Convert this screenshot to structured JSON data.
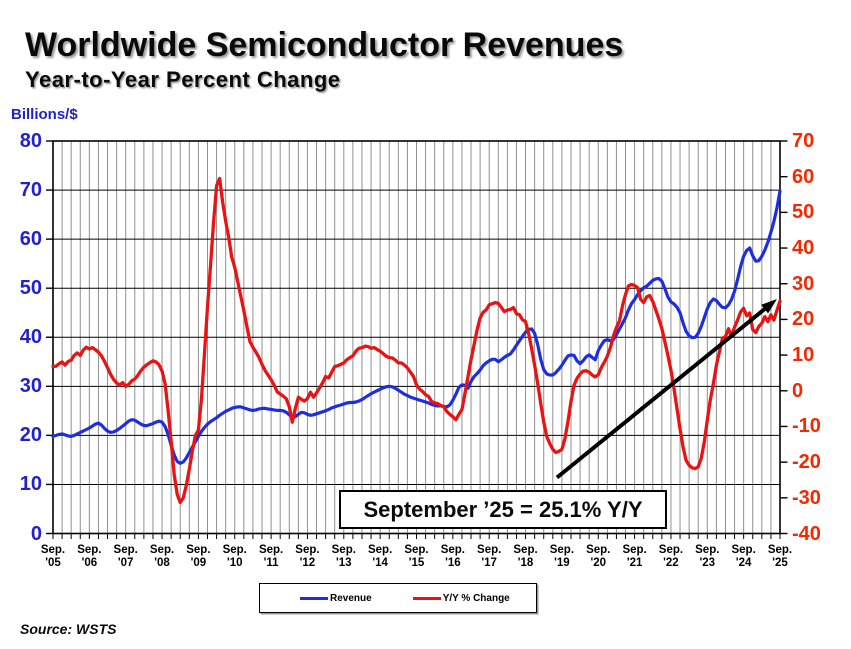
{
  "title": "Worldwide Semiconductor Revenues",
  "subtitle": "Year-to-Year Percent Change",
  "source": "Source: WSTS",
  "annotation": {
    "text": "September ’25 = 25.1% Y/Y"
  },
  "legend": {
    "items": [
      {
        "label": "Revenue",
        "color": "#1e2ede"
      },
      {
        "label": "Y/Y % Change",
        "color": "#e81414"
      }
    ]
  },
  "left_axis": {
    "title": "Billions/$",
    "color": "#2222cc",
    "min": 0,
    "max": 80,
    "tick_labels": [
      "80",
      "70",
      "60",
      "50",
      "40",
      "30",
      "20",
      "10",
      "0"
    ]
  },
  "right_axis": {
    "color": "#f52800",
    "min": -40,
    "max": 70,
    "tick_labels": [
      "70",
      "60",
      "50",
      "40",
      "30",
      "20",
      "10",
      "0",
      "-10",
      "-20",
      "-30",
      "-40"
    ]
  },
  "x_axis": {
    "month_label": "Sep.",
    "years": [
      "'05",
      "'06",
      "'07",
      "'08",
      "'09",
      "'10",
      "'11",
      "'12",
      "'13",
      "'14",
      "'15",
      "'16",
      "'17",
      "'18",
      "'19",
      "'20",
      "'21",
      "'22",
      "'23",
      "'24",
      "'25"
    ]
  },
  "chart_data": {
    "type": "line",
    "x_description": "Monthly, September 2005 through September 2025",
    "x_start": "2005-09",
    "x_end": "2025-09",
    "ylim_left": [
      0,
      80
    ],
    "ylim_right": [
      -40,
      70
    ],
    "grid": {
      "vertical": "quarterly",
      "horizontal": "every 10 (left axis)"
    },
    "legend_position": "bottom center",
    "series": [
      {
        "name": "Revenue",
        "axis": "left",
        "unit": "US$ billions",
        "values": [
          19.8,
          20.0,
          20.2,
          20.3,
          20.1,
          19.9,
          19.8,
          20.0,
          20.3,
          20.6,
          20.9,
          21.2,
          21.5,
          21.9,
          22.3,
          22.5,
          22.1,
          21.4,
          20.9,
          20.6,
          20.7,
          21.0,
          21.4,
          21.9,
          22.4,
          22.9,
          23.2,
          23.1,
          22.7,
          22.3,
          22.0,
          22.0,
          22.2,
          22.4,
          22.7,
          22.9,
          22.7,
          21.8,
          20.2,
          18.0,
          16.0,
          14.7,
          14.3,
          14.6,
          15.4,
          16.5,
          17.6,
          18.7,
          19.8,
          20.8,
          21.6,
          22.3,
          22.8,
          23.2,
          23.6,
          24.1,
          24.5,
          24.9,
          25.2,
          25.5,
          25.7,
          25.8,
          25.8,
          25.6,
          25.4,
          25.2,
          25.1,
          25.2,
          25.4,
          25.5,
          25.5,
          25.4,
          25.3,
          25.2,
          25.1,
          25.1,
          25.0,
          24.7,
          24.2,
          23.7,
          23.8,
          24.3,
          24.7,
          24.6,
          24.3,
          24.1,
          24.2,
          24.4,
          24.6,
          24.8,
          25.0,
          25.3,
          25.6,
          25.8,
          26.0,
          26.2,
          26.4,
          26.6,
          26.7,
          26.7,
          26.8,
          27.0,
          27.3,
          27.7,
          28.1,
          28.5,
          28.8,
          29.1,
          29.4,
          29.7,
          29.9,
          30.0,
          29.9,
          29.6,
          29.2,
          28.8,
          28.4,
          28.1,
          27.8,
          27.6,
          27.4,
          27.2,
          27.0,
          26.8,
          26.6,
          26.3,
          26.1,
          26.0,
          26.0,
          25.9,
          25.8,
          26.2,
          27.2,
          28.4,
          29.8,
          30.3,
          30.2,
          29.6,
          31.0,
          32.0,
          32.6,
          33.3,
          34.2,
          34.8,
          35.2,
          35.5,
          35.5,
          35.0,
          35.4,
          35.9,
          36.3,
          36.6,
          37.4,
          38.4,
          39.3,
          40.2,
          41.0,
          41.6,
          41.7,
          40.8,
          38.5,
          35.5,
          33.4,
          32.5,
          32.3,
          32.3,
          32.8,
          33.5,
          34.3,
          35.3,
          36.2,
          36.4,
          36.3,
          35.2,
          34.6,
          35.2,
          36.0,
          36.4,
          35.9,
          35.4,
          37.3,
          38.4,
          39.3,
          39.5,
          39.3,
          39.5,
          40.5,
          41.7,
          42.8,
          44.0,
          45.6,
          46.9,
          47.7,
          48.7,
          49.5,
          50.1,
          50.4,
          51.0,
          51.6,
          51.9,
          52.0,
          51.4,
          49.9,
          48.2,
          47.2,
          46.8,
          46.1,
          45.0,
          42.9,
          41.2,
          40.3,
          39.9,
          40.0,
          40.8,
          42.2,
          44.0,
          45.8,
          47.1,
          47.8,
          47.5,
          46.7,
          46.1,
          46.0,
          46.6,
          47.7,
          49.4,
          51.8,
          54.4,
          56.5,
          57.7,
          58.2,
          56.6,
          55.5,
          55.6,
          56.5,
          57.8,
          59.4,
          61.4,
          63.6,
          66.4,
          69.8
        ]
      },
      {
        "name": "Y/Y % Change",
        "axis": "right",
        "unit": "percent",
        "values": [
          6.8,
          6.9,
          7.6,
          8.1,
          7.2,
          8.2,
          8.6,
          9.9,
          10.6,
          9.9,
          11.4,
          12.2,
          11.7,
          12.1,
          11.5,
          10.8,
          9.8,
          8.2,
          6.5,
          4.6,
          3.2,
          2.2,
          1.6,
          2.3,
          1.2,
          1.8,
          2.8,
          3.3,
          4.3,
          5.6,
          6.6,
          7.3,
          7.9,
          8.4,
          8.1,
          7.3,
          5.5,
          2.0,
          -5.5,
          -14.0,
          -23.5,
          -29.0,
          -31.3,
          -30.0,
          -26.5,
          -22.0,
          -17.0,
          -12.5,
          -11.0,
          -2.5,
          10.5,
          23.5,
          35.0,
          47.0,
          57.5,
          59.5,
          53.0,
          47.5,
          43.0,
          37.5,
          34.5,
          30.5,
          26.5,
          22.5,
          18.0,
          13.8,
          12.2,
          10.8,
          9.3,
          7.4,
          5.7,
          4.4,
          3.1,
          1.6,
          -0.3,
          -0.9,
          -1.5,
          -2.2,
          -4.5,
          -8.8,
          -5.0,
          -1.8,
          -2.4,
          -2.9,
          -2.2,
          -0.4,
          -1.8,
          -0.6,
          0.8,
          2.2,
          4.0,
          3.6,
          5.2,
          6.8,
          7.0,
          7.4,
          7.8,
          8.7,
          9.3,
          9.8,
          11.1,
          11.9,
          12.1,
          12.5,
          12.4,
          11.9,
          12.1,
          11.6,
          11.1,
          10.4,
          9.7,
          9.3,
          9.2,
          8.6,
          7.8,
          7.8,
          7.2,
          6.4,
          5.2,
          4.0,
          1.7,
          0.5,
          -0.2,
          -1.1,
          -1.6,
          -3.0,
          -3.4,
          -3.6,
          -4.1,
          -4.5,
          -5.8,
          -6.6,
          -7.3,
          -8.1,
          -6.6,
          -5.3,
          -0.7,
          4.0,
          8.7,
          12.9,
          17.1,
          20.4,
          22.0,
          22.7,
          24.1,
          24.4,
          24.7,
          24.5,
          23.4,
          22.2,
          22.6,
          22.8,
          23.3,
          21.6,
          21.3,
          19.9,
          19.4,
          16.1,
          11.9,
          7.2,
          2.1,
          -3.5,
          -8.7,
          -12.9,
          -14.8,
          -16.4,
          -17.3,
          -17.0,
          -16.4,
          -13.5,
          -8.5,
          -3.0,
          1.5,
          3.5,
          4.7,
          5.5,
          5.6,
          5.2,
          4.4,
          3.9,
          4.5,
          6.5,
          8.0,
          9.7,
          12.1,
          15.3,
          17.7,
          19.6,
          23.8,
          27.0,
          29.4,
          29.8,
          29.5,
          28.9,
          25.6,
          24.7,
          26.3,
          26.7,
          25.0,
          22.6,
          20.2,
          17.4,
          13.7,
          9.9,
          5.7,
          0.6,
          -5.0,
          -10.6,
          -15.8,
          -19.5,
          -20.9,
          -21.6,
          -21.8,
          -21.3,
          -19.0,
          -14.3,
          -8.2,
          -2.6,
          2.0,
          7.2,
          10.9,
          14.7,
          15.2,
          17.4,
          15.2,
          17.9,
          19.8,
          22.1,
          23.1,
          21.0,
          21.8,
          17.2,
          16.3,
          18.0,
          18.9,
          20.8,
          19.4,
          21.3,
          19.8,
          22.6,
          25.1
        ]
      }
    ],
    "annotations": [
      {
        "type": "callout-box",
        "text": "September ’25 = 25.1% Y/Y"
      },
      {
        "type": "arrow",
        "points_to": "last Y/Y value (Sep 2025, 25.1%)"
      }
    ]
  }
}
